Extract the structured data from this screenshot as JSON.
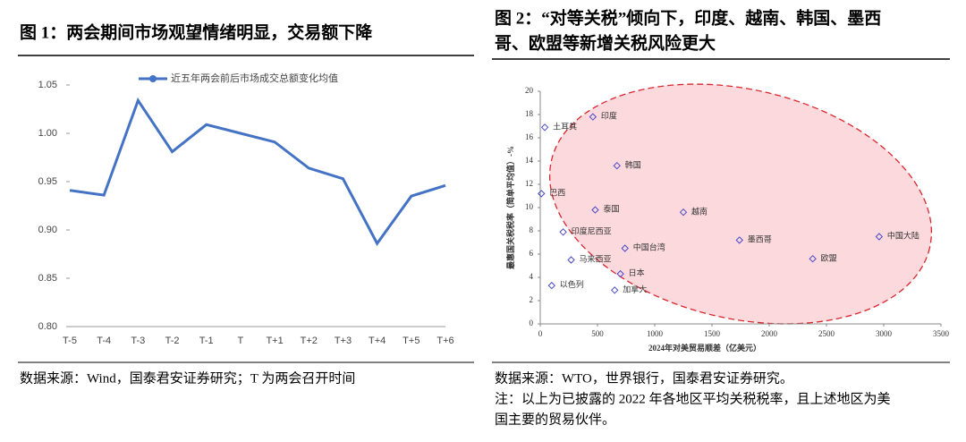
{
  "chart_data": [
    {
      "type": "line",
      "title": "图 1：两会期间市场观望情绪明显，交易额下降",
      "categories": [
        "T-5",
        "T-4",
        "T-3",
        "T-2",
        "T-1",
        "T",
        "T+1",
        "T+2",
        "T+3",
        "T+4",
        "T+5",
        "T+6"
      ],
      "series": [
        {
          "name": "近五年两会前后市场成交总额变化均值",
          "color": "#4472c4",
          "values": [
            0.941,
            0.936,
            1.034,
            0.981,
            1.009,
            1.0,
            0.991,
            0.964,
            0.953,
            0.886,
            0.935,
            0.946
          ]
        }
      ],
      "ylim": [
        0.8,
        1.05
      ],
      "yticks": [
        {
          "value": 0.8,
          "label": "0.80"
        },
        0.85,
        {
          "value": 0.9,
          "label": "0.90"
        },
        0.95,
        {
          "value": 1.0,
          "label": "1.00"
        },
        1.05
      ],
      "source": "数据来源：Wind，国泰君安证券研究；T 为两会召开时间"
    },
    {
      "type": "scatter",
      "title": "图 2：“对等关税”倾向下，印度、越南、韩国、墨西哥、欧盟等新增关税风险更大",
      "labels": [
        "土耳其",
        "印度",
        "韩国",
        "巴西",
        "泰国",
        "越南",
        "印度尼西亚",
        "中国台湾",
        "墨西哥",
        "中国大陆",
        "欧盟",
        "马来西亚",
        "日本",
        "以色列",
        "加拿大"
      ],
      "x": [
        40,
        460,
        670,
        10,
        480,
        1250,
        200,
        740,
        1740,
        2960,
        2380,
        270,
        700,
        100,
        650
      ],
      "values": [
        16.9,
        17.8,
        13.6,
        11.2,
        9.8,
        9.6,
        7.9,
        6.5,
        7.2,
        7.5,
        5.6,
        5.5,
        4.3,
        3.3,
        2.9
      ],
      "color": "#4a4ac8",
      "xlim": [
        0,
        3500
      ],
      "xticks": [
        0,
        500,
        1000,
        1500,
        2000,
        2500,
        3000,
        3500
      ],
      "ylim": [
        0,
        20
      ],
      "yticks": [
        0,
        2,
        4,
        6,
        8,
        10,
        12,
        14,
        16,
        18,
        20
      ],
      "xlabel": "2024年对美贸易顺差（亿美元）",
      "ylabel": "最惠国关税税率（简单平均值）-%",
      "source": "数据来源：WTO，世界银行，国泰君安证券研究。",
      "note": "注：以上为已披露的 2022 年各地区平均关税税率，且上述地区为美国主要的贸易伙伴。"
    }
  ]
}
